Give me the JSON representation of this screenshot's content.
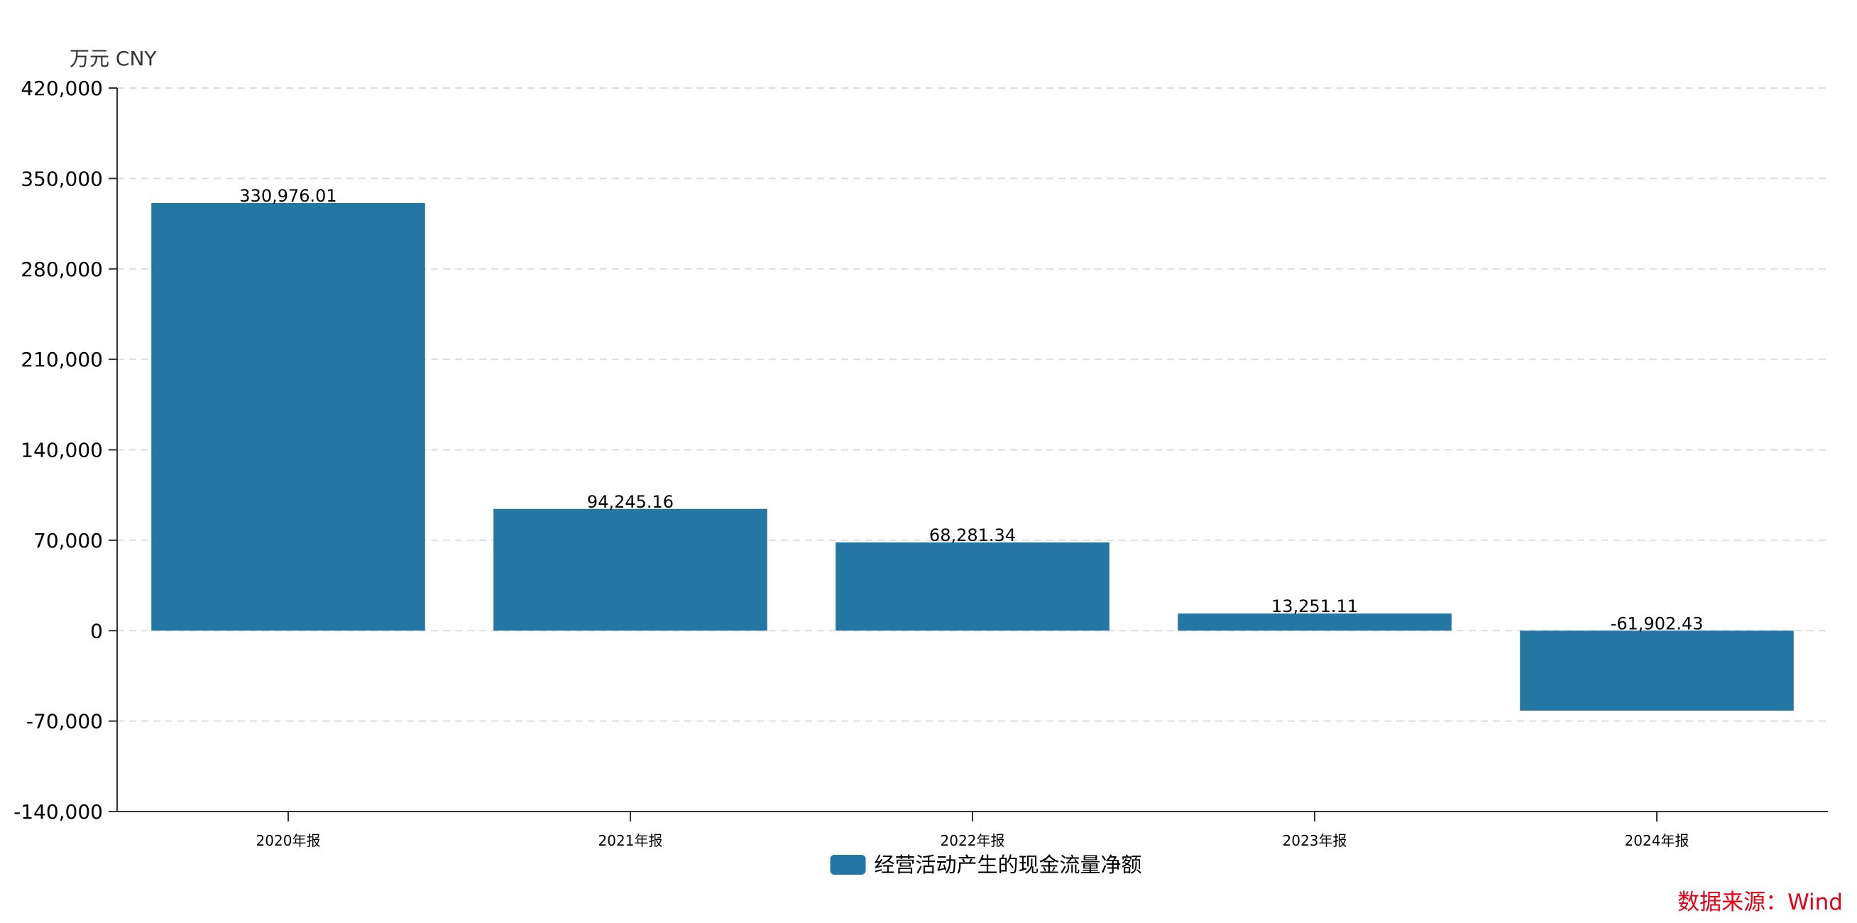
{
  "unit_label": "万元  CNY",
  "source_note": "数据来源：Wind",
  "colors": {
    "bar": "#2477a3",
    "grid": "#dcdde2",
    "axis": "#333333",
    "text": "#000000",
    "source": "#e60012"
  },
  "chart_data": {
    "type": "bar",
    "categories": [
      "2020年报",
      "2021年报",
      "2022年报",
      "2023年报",
      "2024年报"
    ],
    "series": [
      {
        "name": "经营活动产生的现金流量净额",
        "values": [
          330976.01,
          94245.16,
          68281.34,
          13251.11,
          -61902.43
        ],
        "labels": [
          "330,976.01",
          "94,245.16",
          "68,281.34",
          "13,251.11",
          "-61,902.43"
        ]
      }
    ],
    "ylim": [
      -140000,
      420000
    ],
    "yticks": [
      -140000,
      -70000,
      0,
      70000,
      140000,
      210000,
      280000,
      350000,
      420000
    ],
    "ytick_labels": [
      "-140,000",
      "-70,000",
      "0",
      "70,000",
      "140,000",
      "210,000",
      "280,000",
      "350,000",
      "420,000"
    ],
    "grid": true,
    "legend_position": "bottom-center",
    "xlabel": "",
    "ylabel": ""
  }
}
